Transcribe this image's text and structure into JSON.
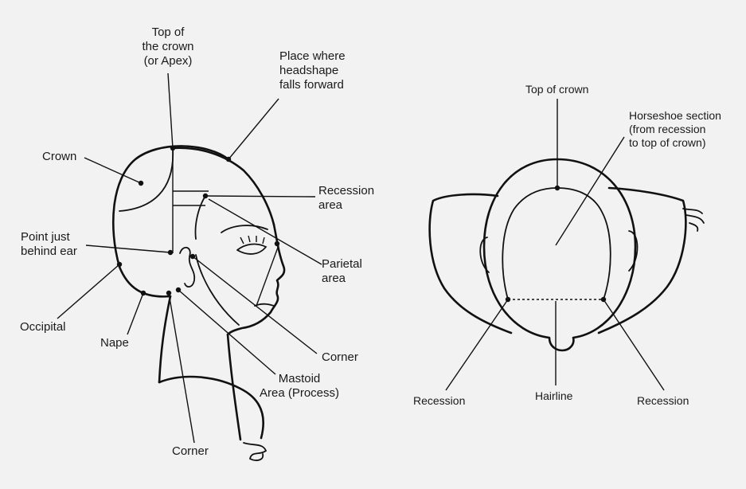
{
  "side_view": {
    "labels": {
      "top_of_crown": [
        "Top of",
        "the crown",
        "(or Apex)"
      ],
      "headshape_forward": [
        "Place where",
        "headshape",
        "falls forward"
      ],
      "crown": "Crown",
      "recession_area": [
        "Recession",
        "area"
      ],
      "point_behind_ear": [
        "Point just",
        "behind ear"
      ],
      "parietal_area": [
        "Parietal",
        "area"
      ],
      "occipital": "Occipital",
      "nape": "Nape",
      "corner_right": "Corner",
      "mastoid_area": [
        "Mastoid",
        "Area (Process)"
      ],
      "corner_bottom": "Corner"
    }
  },
  "top_view": {
    "labels": {
      "top_of_crown": "Top of crown",
      "horseshoe_section": [
        "Horseshoe section",
        "(from recession",
        "to top of crown)"
      ],
      "recession_left": "Recession",
      "hairline": "Hairline",
      "recession_right": "Recession"
    }
  },
  "colors": {
    "background": "#f2f2f2",
    "line": "#111111",
    "text": "#1a1a1a"
  }
}
